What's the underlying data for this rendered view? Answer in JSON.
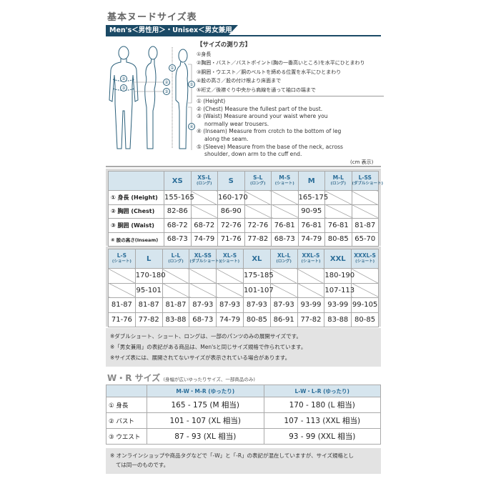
{
  "title": "基本ヌードサイズ表",
  "banner": "Men's＜男性用＞・Unisex＜男女兼用＞",
  "figure_labels": [
    "①",
    "②",
    "③",
    "④",
    "⑤"
  ],
  "howto": {
    "heading": "【サイズの測り方】",
    "jp": [
      "①身長",
      "②胸囲・バスト／バストポイント(胸の一番高いところ)を水平にひとまわり",
      "③胴囲・ウエスト／胴のベルトを締める位置を水平にひとまわり",
      "④股の高さ／股の付け根より床面まで",
      "⑤裄丈／後襟ぐり中央から肩線を通って袖口の端まで"
    ],
    "en": [
      [
        "① (Height)"
      ],
      [
        "② (Chest) Measure the fullest part of the bust."
      ],
      [
        "③ (Waist) Measure around your waist where you",
        "normally wear trousers."
      ],
      [
        "④ (Inseam) Measure from crotch to the bottom of leg",
        "along the seam."
      ],
      [
        "⑤ (Sleeve) Measure from the base of the neck, across",
        "shoulder, down arm to the cuff end."
      ]
    ]
  },
  "unit_note": "(cm 表示)",
  "table1": {
    "headers": [
      [
        "XS",
        ""
      ],
      [
        "XS-L",
        "(ロング)"
      ],
      [
        "S",
        ""
      ],
      [
        "S-L",
        "(ロング)"
      ],
      [
        "M-S",
        "(ショート)"
      ],
      [
        "M",
        ""
      ],
      [
        "M-L",
        "(ロング)"
      ],
      [
        "L-SS",
        "(ダブルショート)"
      ]
    ],
    "rows": [
      {
        "label": "① 身長 (Height)",
        "cells": [
          "155-165",
          null,
          "160-170",
          null,
          null,
          "165-175",
          null,
          null
        ]
      },
      {
        "label": "② 胸囲 (Chest)",
        "cells": [
          "82-86",
          null,
          "86-90",
          null,
          null,
          "90-95",
          null,
          null
        ]
      },
      {
        "label": "③ 胴囲 (Waist)",
        "cells": [
          "68-72",
          "68-72",
          "72-76",
          "72-76",
          "76-81",
          "76-81",
          "76-81",
          "81-87"
        ]
      },
      {
        "label": "④ 股の高さ(Inseam)",
        "cells": [
          "68-73",
          "74-79",
          "71-76",
          "77-82",
          "68-73",
          "74-79",
          "80-85",
          "65-70"
        ]
      }
    ]
  },
  "table2": {
    "headers": [
      [
        "L-S",
        "(ショート)"
      ],
      [
        "L",
        ""
      ],
      [
        "L-L",
        "(ロング)"
      ],
      [
        "XL-SS",
        "(ダブルショート)"
      ],
      [
        "XL-S",
        "(ショート)"
      ],
      [
        "XL",
        ""
      ],
      [
        "XL-L",
        "(ロング)"
      ],
      [
        "XXL-S",
        "(ショート)"
      ],
      [
        "XXL",
        ""
      ],
      [
        "XXXL-S",
        "(ショート)"
      ]
    ],
    "rows": [
      [
        null,
        "170-180",
        null,
        null,
        null,
        "175-185",
        null,
        null,
        "180-190",
        null
      ],
      [
        null,
        "95-101",
        null,
        null,
        null,
        "101-107",
        null,
        null,
        "107-113",
        null
      ],
      [
        "81-87",
        "81-87",
        "81-87",
        "87-93",
        "87-93",
        "87-93",
        "87-93",
        "93-99",
        "93-99",
        "99-105"
      ],
      [
        "71-76",
        "77-82",
        "83-88",
        "68-73",
        "74-79",
        "80-85",
        "86-91",
        "77-82",
        "83-88",
        "80-85"
      ]
    ]
  },
  "notes": [
    "※ダブルショート、ショート、ロングは、一部のパンツのみの展開サイズです。",
    "※「男女兼用」の表記がある商品は、Men'sと同じサイズ規格で作られています。",
    "※サイズ表には、展開されてないサイズが表示されている場合があります。"
  ],
  "wr": {
    "title": "W・R サイズ",
    "subtitle": "(身幅が広いゆったりサイズ、一部商品のみ)",
    "headers": [
      "M-W・M-R (ゆったり)",
      "L-W・L-R (ゆったり)"
    ],
    "rows": [
      {
        "label": "① 身長",
        "cells": [
          "165 - 175 (M 相当)",
          "170 - 180 (L 相当)"
        ]
      },
      {
        "label": "② バスト",
        "cells": [
          "101 - 107 (XL 相当)",
          "107 - 113 (XXL 相当)"
        ]
      },
      {
        "label": "③ ウエスト",
        "cells": [
          "87 - 93 (XL 相当)",
          "93 - 99 (XXL 相当)"
        ]
      }
    ]
  },
  "wr_note": [
    "※ オンラインショップや商品タグなどで「-W」と「-R」の表記が混在していますが、サイズ規格とし",
    "ては同一のものです。"
  ],
  "colors": {
    "banner": "#1b4a66",
    "header_bg": "#d6e5ee",
    "header_text": "#2c6e99",
    "panel": "#e3e3e3"
  }
}
